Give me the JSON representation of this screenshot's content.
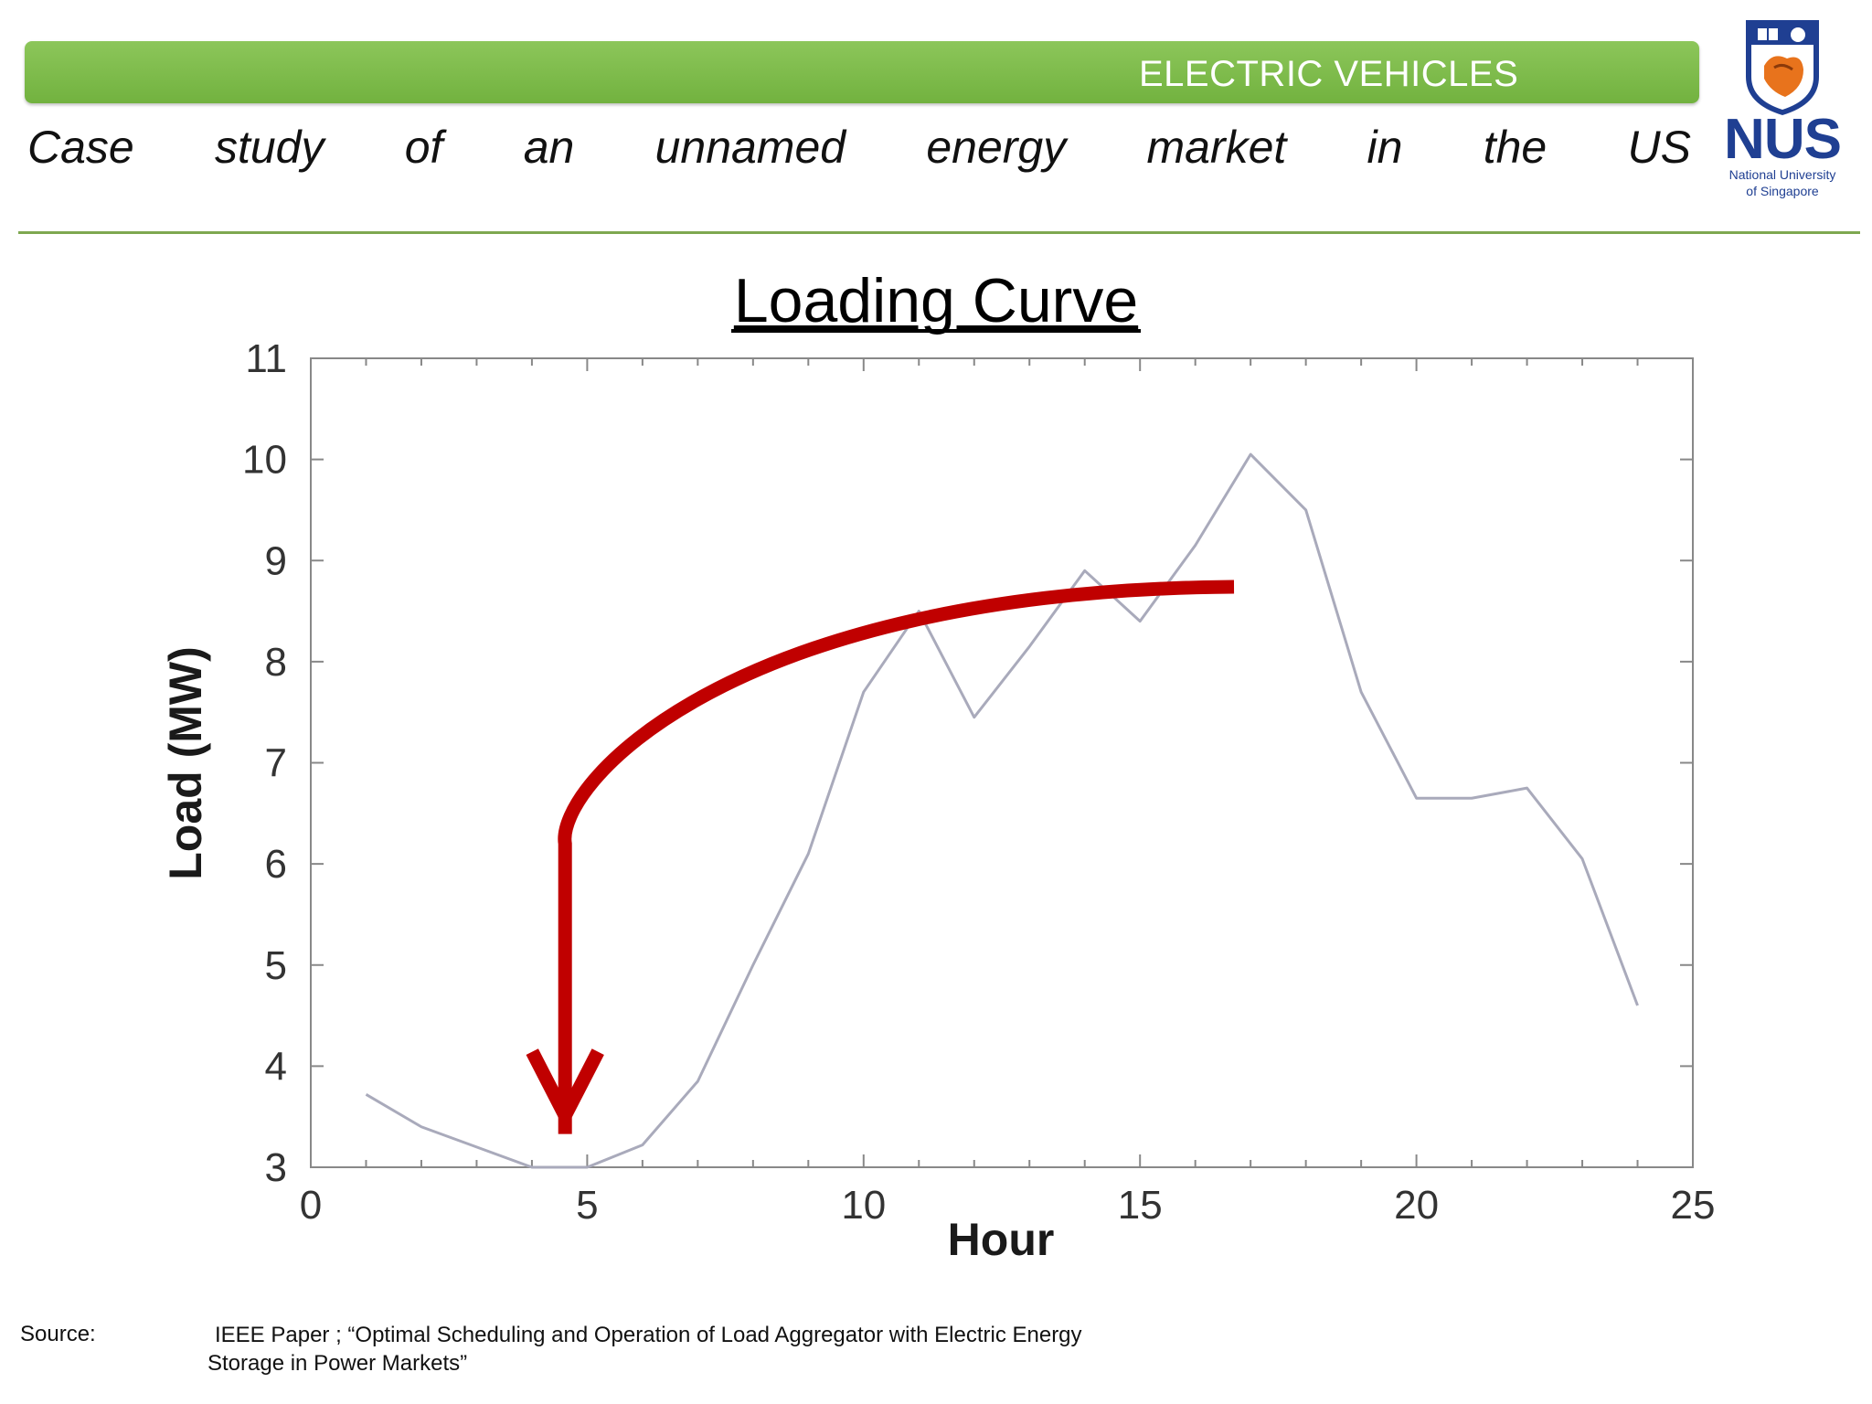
{
  "header": {
    "banner_text": "ELECTRIC VEHICLES",
    "subtitle_words": [
      "Case",
      "study",
      "of",
      "an",
      "unnamed",
      "energy",
      "market",
      "in",
      "the",
      "US"
    ]
  },
  "logo": {
    "name": "NUS",
    "subtitle_line1": "National University",
    "subtitle_line2": "of Singapore"
  },
  "chart_data": {
    "type": "line",
    "title": "Loading Curve",
    "xlabel": "Hour",
    "ylabel": "Load (MW)",
    "xlim": [
      0,
      25
    ],
    "ylim": [
      3,
      11
    ],
    "xticks": [
      0,
      5,
      10,
      15,
      20,
      25
    ],
    "yticks": [
      3,
      4,
      5,
      6,
      7,
      8,
      9,
      10,
      11
    ],
    "grid": false,
    "series": [
      {
        "x": [
          1,
          2,
          3,
          4,
          5,
          6,
          7,
          8,
          9,
          10,
          11,
          12,
          13,
          14,
          15,
          16,
          17,
          18,
          19,
          20,
          21,
          22,
          23,
          24
        ],
        "y": [
          3.72,
          3.4,
          3.2,
          3.0,
          3.0,
          3.22,
          3.85,
          5.0,
          6.1,
          7.7,
          8.5,
          7.45,
          8.15,
          8.9,
          8.4,
          9.15,
          10.05,
          9.5,
          7.7,
          6.65,
          6.65,
          6.75,
          6.05,
          4.6
        ],
        "color": "#a9aabb"
      }
    ],
    "annotation": {
      "type": "curved-arrow",
      "color": "#c00000",
      "from": [
        16.7,
        8.74
      ],
      "to": [
        4.6,
        3.6
      ]
    }
  },
  "source": {
    "label": "Source:",
    "line1": "IEEE  Paper ; “Optimal Scheduling and Operation of Load Aggregator with Electric Energy",
    "line2": "Storage in Power Markets”"
  }
}
